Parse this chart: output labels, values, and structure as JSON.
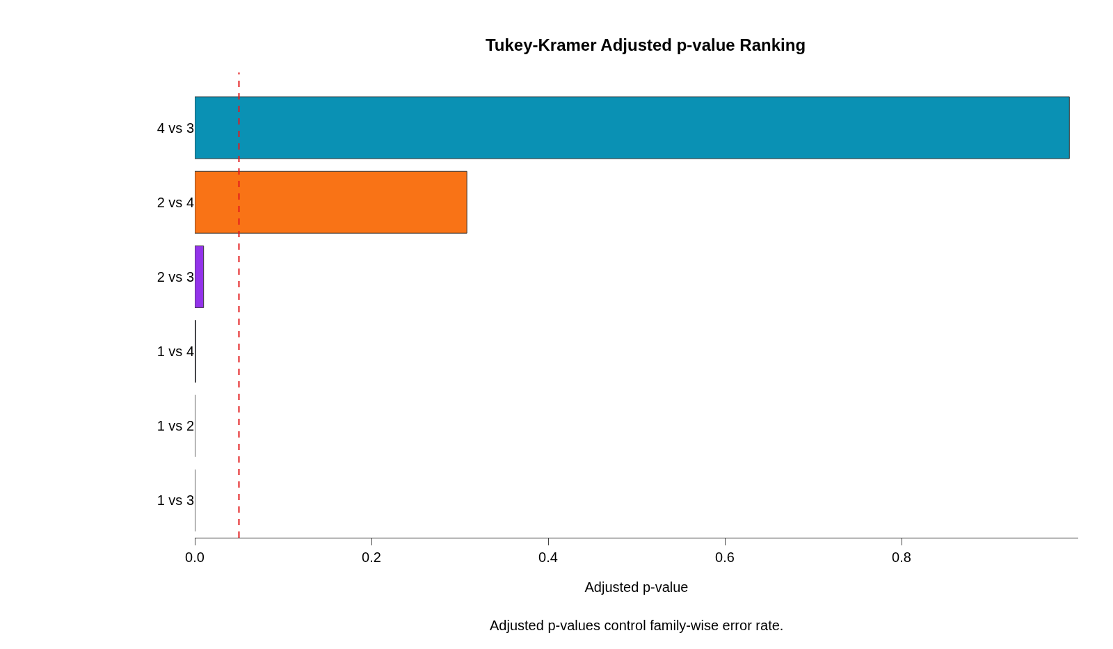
{
  "chart_data": {
    "type": "bar",
    "orientation": "horizontal",
    "title": "Tukey-Kramer Adjusted p-value Ranking",
    "xlabel": "Adjusted p-value",
    "categories": [
      "4 vs 3",
      "2 vs 4",
      "2 vs 3",
      "1 vs 4",
      "1 vs 2",
      "1 vs 3"
    ],
    "values": [
      0.99,
      0.308,
      0.01,
      0.001,
      0,
      0
    ],
    "colors": [
      "#0a91b4",
      "#f97316",
      "#9333ea",
      "#3b3f52",
      "#6b6e7e",
      "#6b6e7e"
    ],
    "xlim": [
      0,
      1.0
    ],
    "xticks": [
      {
        "value": 0,
        "label": "0.0"
      },
      0.2,
      0.4,
      0.6,
      0.8
    ],
    "ref_lines": [
      {
        "axis": "x",
        "value": 0.05,
        "color": "#e31a1c",
        "line_style": "dashed"
      }
    ],
    "annotations": [
      "Adjusted p-values control family-wise error rate."
    ],
    "legend": false
  }
}
